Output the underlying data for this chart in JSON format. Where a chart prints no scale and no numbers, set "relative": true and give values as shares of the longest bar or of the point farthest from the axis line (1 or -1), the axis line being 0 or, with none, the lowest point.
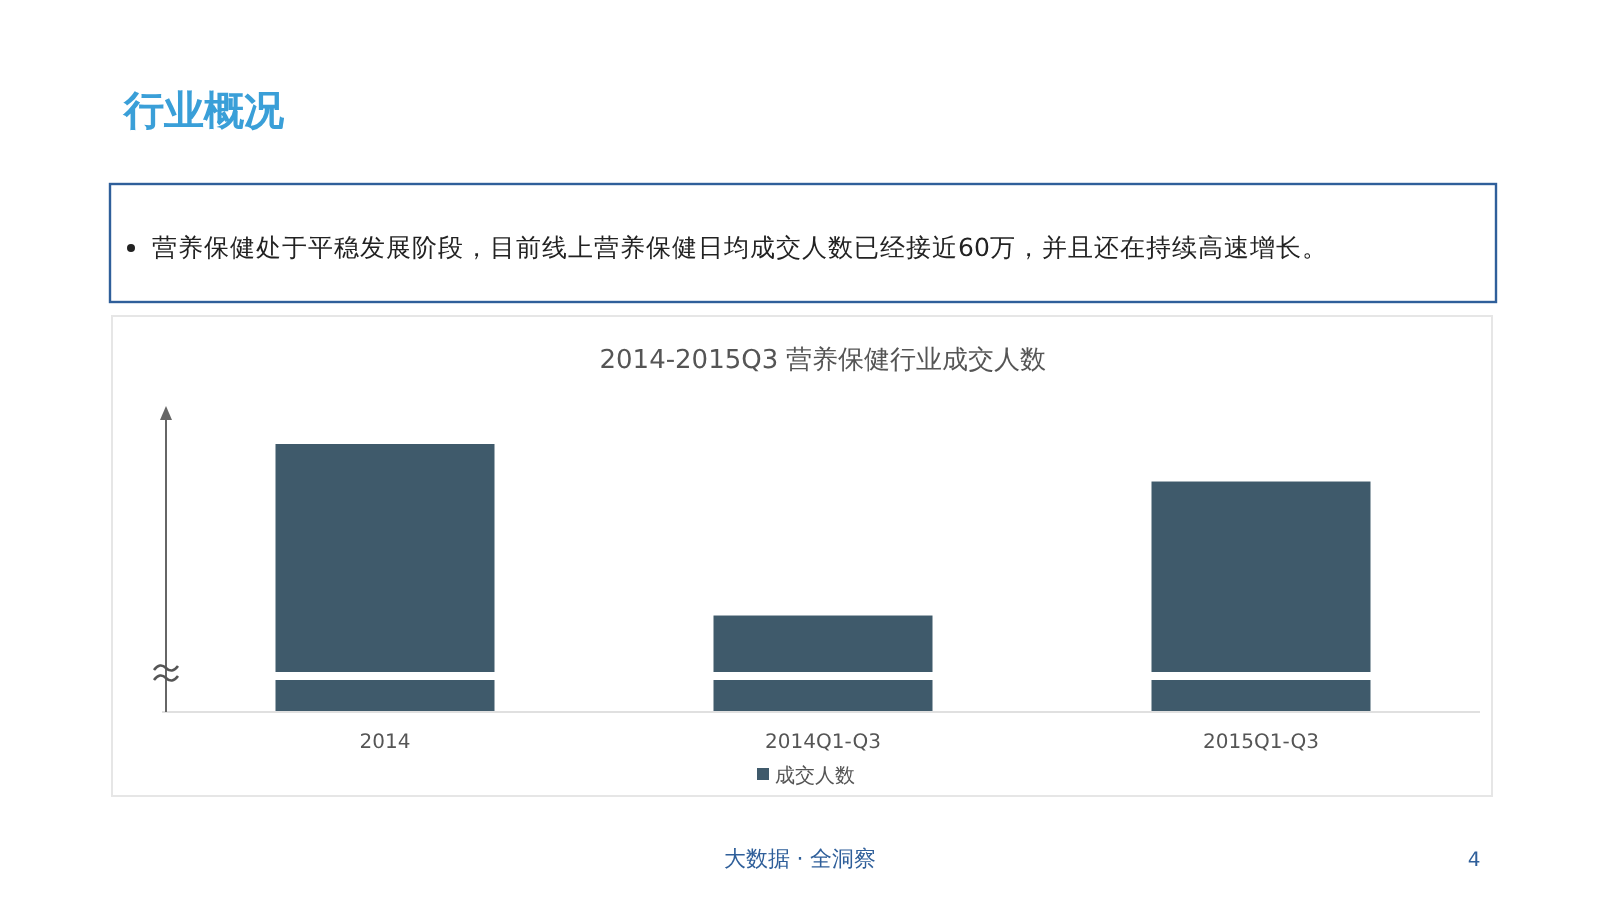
{
  "chart_data": {
    "type": "bar",
    "title": "2014-2015Q3 营养保健行业成交人数",
    "categories": [
      "2014",
      "2014Q1-Q3",
      "2015Q1-Q3"
    ],
    "series": [
      {
        "name": "成交人数",
        "color": "#3f5a6b",
        "values": [
          1,
          0.36,
          0.86
        ]
      }
    ],
    "relative": true,
    "legend": "bottom",
    "annotations": [
      "行业概况",
      "营养保健处于平稳发展阶段，目前线上营养保健日均成交人数已经接近60万，并且还在持续高速增长。",
      "大数据 · 全洞察",
      "4"
    ]
  }
}
